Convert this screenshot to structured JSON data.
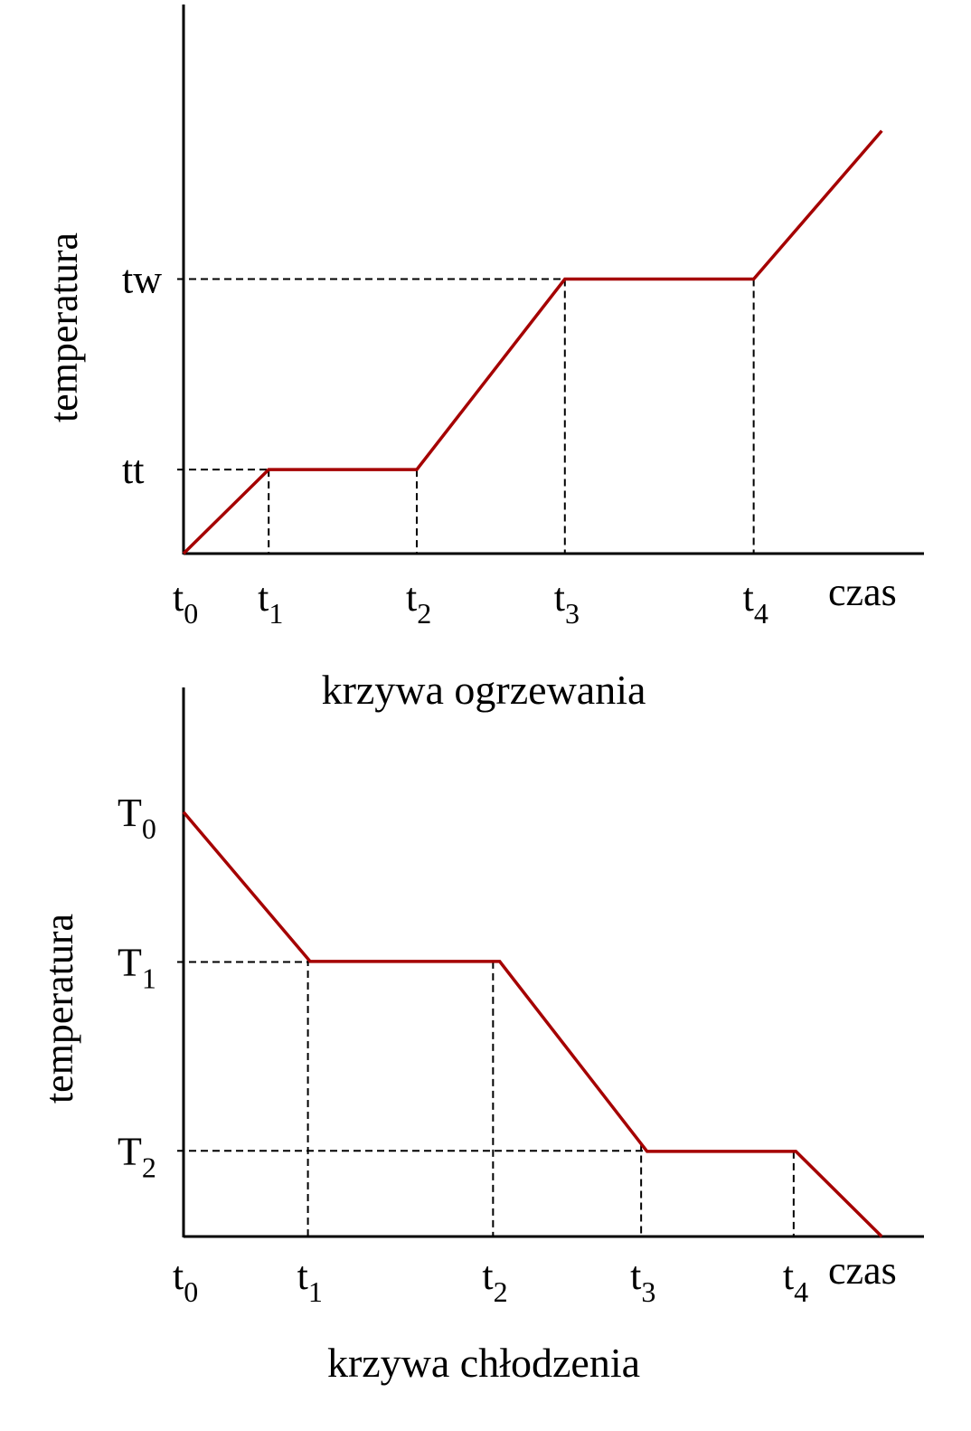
{
  "chart_data": [
    {
      "type": "line",
      "title": "krzywa ogrzewania",
      "xlabel": "czas",
      "ylabel": "temperatura",
      "xlim": [
        0,
        100
      ],
      "ylim": [
        0,
        100
      ],
      "line_color": "#a50000",
      "grid": false,
      "x_ticks": [
        {
          "label": "t",
          "sub": "0",
          "x": 0
        },
        {
          "label": "t",
          "sub": "1",
          "x": 11.5
        },
        {
          "label": "t",
          "sub": "2",
          "x": 31.5
        },
        {
          "label": "t",
          "sub": "3",
          "x": 51.5
        },
        {
          "label": "t",
          "sub": "4",
          "x": 77
        }
      ],
      "y_ticks": [
        {
          "label": "tt",
          "sub": "",
          "y": 15.3,
          "guide_to_x": 11.5
        },
        {
          "label": "tw",
          "sub": "",
          "y": 50,
          "guide_to_x": 51.5
        }
      ],
      "points": [
        [
          0,
          0
        ],
        [
          11.5,
          15.3
        ],
        [
          31.5,
          15.3
        ],
        [
          51.5,
          50
        ],
        [
          77,
          50
        ],
        [
          94.3,
          77
        ]
      ]
    },
    {
      "type": "line",
      "title": "krzywa chłodzenia",
      "xlabel": "czas",
      "ylabel": "temperatura",
      "xlim": [
        0,
        100
      ],
      "ylim": [
        0,
        100
      ],
      "line_color": "#a50000",
      "grid": false,
      "x_ticks": [
        {
          "label": "t",
          "sub": "0",
          "x": 0
        },
        {
          "label": "t",
          "sub": "1",
          "x": 16.8
        },
        {
          "label": "t",
          "sub": "2",
          "x": 41.8
        },
        {
          "label": "t",
          "sub": "3",
          "x": 61.8
        },
        {
          "label": "t",
          "sub": "4",
          "x": 82.4
        }
      ],
      "y_ticks": [
        {
          "label": "T",
          "sub": "0",
          "y": 77.3,
          "guide_to_x": null
        },
        {
          "label": "T",
          "sub": "1",
          "y": 50,
          "guide_to_x": 17.1
        },
        {
          "label": "T",
          "sub": "2",
          "y": 15.6,
          "guide_to_x": 62.6
        }
      ],
      "points": [
        [
          0,
          77.3
        ],
        [
          17.1,
          50.1
        ],
        [
          42.7,
          50.1
        ],
        [
          62.6,
          15.5
        ],
        [
          82.7,
          15.5
        ],
        [
          94.3,
          0
        ]
      ]
    }
  ]
}
